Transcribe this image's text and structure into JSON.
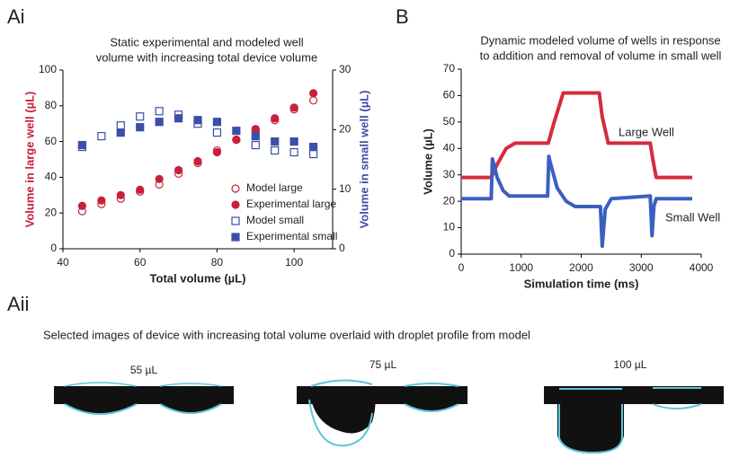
{
  "panels": {
    "a_i": "Ai",
    "b": "B",
    "a_ii": "Aii"
  },
  "chart_data": [
    {
      "type": "scatter",
      "title_lines": [
        "Static experimental and modeled well",
        "volume with increasing total device volume"
      ],
      "xlabel": "Total volume (µL)",
      "ylabel": "Volume in large well (µL)",
      "y2label": "Volume in small well (µL)",
      "ylabel_color": "#c8203a",
      "y2label_color": "#3b4fa6",
      "xlim": [
        40,
        110
      ],
      "xticks": [
        40,
        60,
        80,
        100
      ],
      "ylim": [
        0,
        100
      ],
      "yticks": [
        0,
        20,
        40,
        60,
        80,
        100
      ],
      "y2lim": [
        0,
        30
      ],
      "y2ticks": [
        0,
        10,
        20,
        30
      ],
      "series": [
        {
          "name": "Model large",
          "color": "#c8203a",
          "marker": "circle-open",
          "x": [
            45,
            50,
            55,
            60,
            65,
            70,
            75,
            80,
            85,
            90,
            95,
            100,
            105
          ],
          "values": [
            21,
            25,
            28,
            32,
            36,
            42,
            48,
            55,
            61,
            66,
            72,
            78,
            83
          ]
        },
        {
          "name": "Experimental large",
          "color": "#c8203a",
          "marker": "circle",
          "x": [
            45,
            50,
            55,
            60,
            65,
            70,
            75,
            80,
            85,
            90,
            95,
            100,
            105
          ],
          "values": [
            24,
            27,
            30,
            33,
            39,
            44,
            49,
            54,
            61,
            67,
            73,
            79,
            87
          ]
        },
        {
          "name": "Model small",
          "color": "#3b4fa6",
          "marker": "square-open",
          "axis": "y2",
          "x": [
            45,
            50,
            55,
            60,
            65,
            70,
            75,
            80,
            90,
            95,
            100,
            105
          ],
          "values": [
            17.1,
            18.9,
            20.7,
            22.2,
            23.1,
            22.5,
            21,
            19.5,
            17.4,
            16.5,
            16.2,
            15.9
          ]
        },
        {
          "name": "Experimental small",
          "color": "#3b4fa6",
          "marker": "square",
          "axis": "y2",
          "x": [
            45,
            55,
            60,
            65,
            70,
            75,
            80,
            85,
            90,
            95,
            100,
            105
          ],
          "values": [
            17.4,
            19.5,
            20.4,
            21.3,
            21.9,
            21.6,
            21.3,
            19.8,
            18.9,
            18,
            18,
            17.1
          ]
        }
      ]
    },
    {
      "type": "line",
      "title_lines": [
        "Dynamic modeled volume of wells in response",
        "to addition and removal of volume in small well"
      ],
      "xlabel": "Simulation time (ms)",
      "ylabel": "Volume (µL)",
      "xlim": [
        0,
        4000
      ],
      "xticks": [
        0,
        1000,
        2000,
        3000,
        4000
      ],
      "ylim": [
        0,
        70
      ],
      "yticks": [
        0,
        10,
        20,
        30,
        40,
        50,
        60,
        70
      ],
      "series": [
        {
          "name": "Large Well",
          "color": "#d62a3f",
          "x": [
            0,
            500,
            600,
            750,
            900,
            1450,
            1550,
            1700,
            2300,
            2350,
            2450,
            3150,
            3200,
            3250,
            3850
          ],
          "values": [
            29,
            29,
            34,
            40,
            42,
            42,
            50,
            61,
            61,
            52,
            42,
            42,
            35,
            29,
            29
          ]
        },
        {
          "name": "Small Well",
          "color": "#3b5fc0",
          "x": [
            0,
            500,
            520,
            600,
            700,
            800,
            1440,
            1460,
            1480,
            1600,
            1750,
            1900,
            2320,
            2350,
            2400,
            2500,
            3150,
            3180,
            3210,
            3250,
            3850
          ],
          "values": [
            21,
            21,
            36,
            29,
            24,
            22,
            22,
            37,
            35,
            25,
            20,
            18,
            18,
            3,
            17,
            21,
            22,
            7,
            18,
            21,
            21
          ]
        }
      ]
    }
  ],
  "images": {
    "caption": "Selected images of device with increasing total volume overlaid with droplet profile from model",
    "labels": [
      "55 µL",
      "75 µL",
      "100 µL"
    ]
  }
}
